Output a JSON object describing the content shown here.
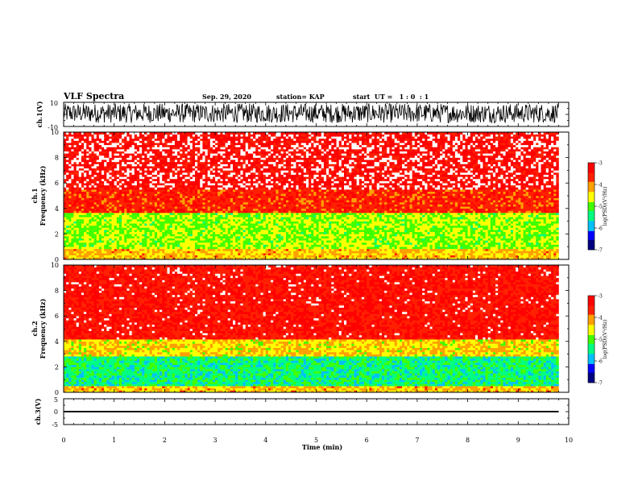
{
  "header": {
    "title": "VLF Spectra",
    "date": "Sep. 29, 2020",
    "station": "station= KAP",
    "start": "start  UT =   1 : 0  : 1"
  },
  "chart_data": [
    {
      "type": "line",
      "title": "",
      "ylabel": "ch.1(V)",
      "ylim": [
        -10,
        10
      ],
      "yticks": [
        "10",
        "-10"
      ],
      "xlim": [
        0,
        10
      ],
      "description_series": "dense waveform filling most of the range",
      "series": [
        {
          "values_range": [
            -7,
            9
          ]
        }
      ]
    },
    {
      "type": "heatmap",
      "ylabel": "Frequency (kHz)",
      "channel_label": "ch.1",
      "ylim": [
        0,
        10
      ],
      "yticks": [
        "0",
        "2",
        "4",
        "6",
        "8",
        "10"
      ],
      "xlim": [
        0,
        9.8
      ],
      "bands": [
        {
          "from_khz": 0.0,
          "to_khz": 0.8,
          "level": -4.3
        },
        {
          "from_khz": 0.8,
          "to_khz": 3.6,
          "level": -4.8
        },
        {
          "from_khz": 3.6,
          "to_khz": 5.5,
          "level": -3.6
        },
        {
          "from_khz": 5.5,
          "to_khz": 10.0,
          "level": -3.2
        }
      ],
      "colorbar": {
        "label": "log(PSD)(V²/Hz)",
        "range": [
          -7,
          -3
        ],
        "ticks": [
          "-3",
          "-4",
          "-5",
          "-6",
          "-7"
        ]
      }
    },
    {
      "type": "heatmap",
      "ylabel": "Frequency (kHz)",
      "channel_label": "ch.2",
      "ylim": [
        0,
        10
      ],
      "yticks": [
        "0",
        "2",
        "4",
        "6",
        "8",
        "10"
      ],
      "xlim": [
        0,
        9.8
      ],
      "bands": [
        {
          "from_khz": 0.0,
          "to_khz": 0.5,
          "level": -4.3
        },
        {
          "from_khz": 0.5,
          "to_khz": 2.8,
          "level": -5.4
        },
        {
          "from_khz": 2.8,
          "to_khz": 4.2,
          "level": -4.4
        },
        {
          "from_khz": 4.2,
          "to_khz": 10.0,
          "level": -3.4
        }
      ],
      "colorbar": {
        "label": "log(PSD)(V²/Hz)",
        "range": [
          -7,
          -3
        ],
        "ticks": [
          "-3",
          "-4",
          "-5",
          "-6",
          "-7"
        ]
      }
    },
    {
      "type": "line",
      "ylabel": "ch.3(V)",
      "ylim": [
        -5,
        5
      ],
      "yticks": [
        "5",
        "0",
        "-5"
      ],
      "xlim": [
        0,
        10
      ],
      "xlabel": "Time (min)",
      "xticks": [
        "0",
        "1",
        "2",
        "3",
        "4",
        "5",
        "6",
        "7",
        "8",
        "9",
        "10"
      ],
      "series": [
        {
          "values_range": [
            -0.3,
            0.3
          ]
        }
      ]
    }
  ],
  "colors": {
    "axis": "#000000",
    "colorbar_stops": [
      "#000080",
      "#0000ff",
      "#00c0ff",
      "#00ff80",
      "#40ff00",
      "#ffff00",
      "#ffa000",
      "#ff2000",
      "#ff0000",
      "#ffffff"
    ]
  }
}
